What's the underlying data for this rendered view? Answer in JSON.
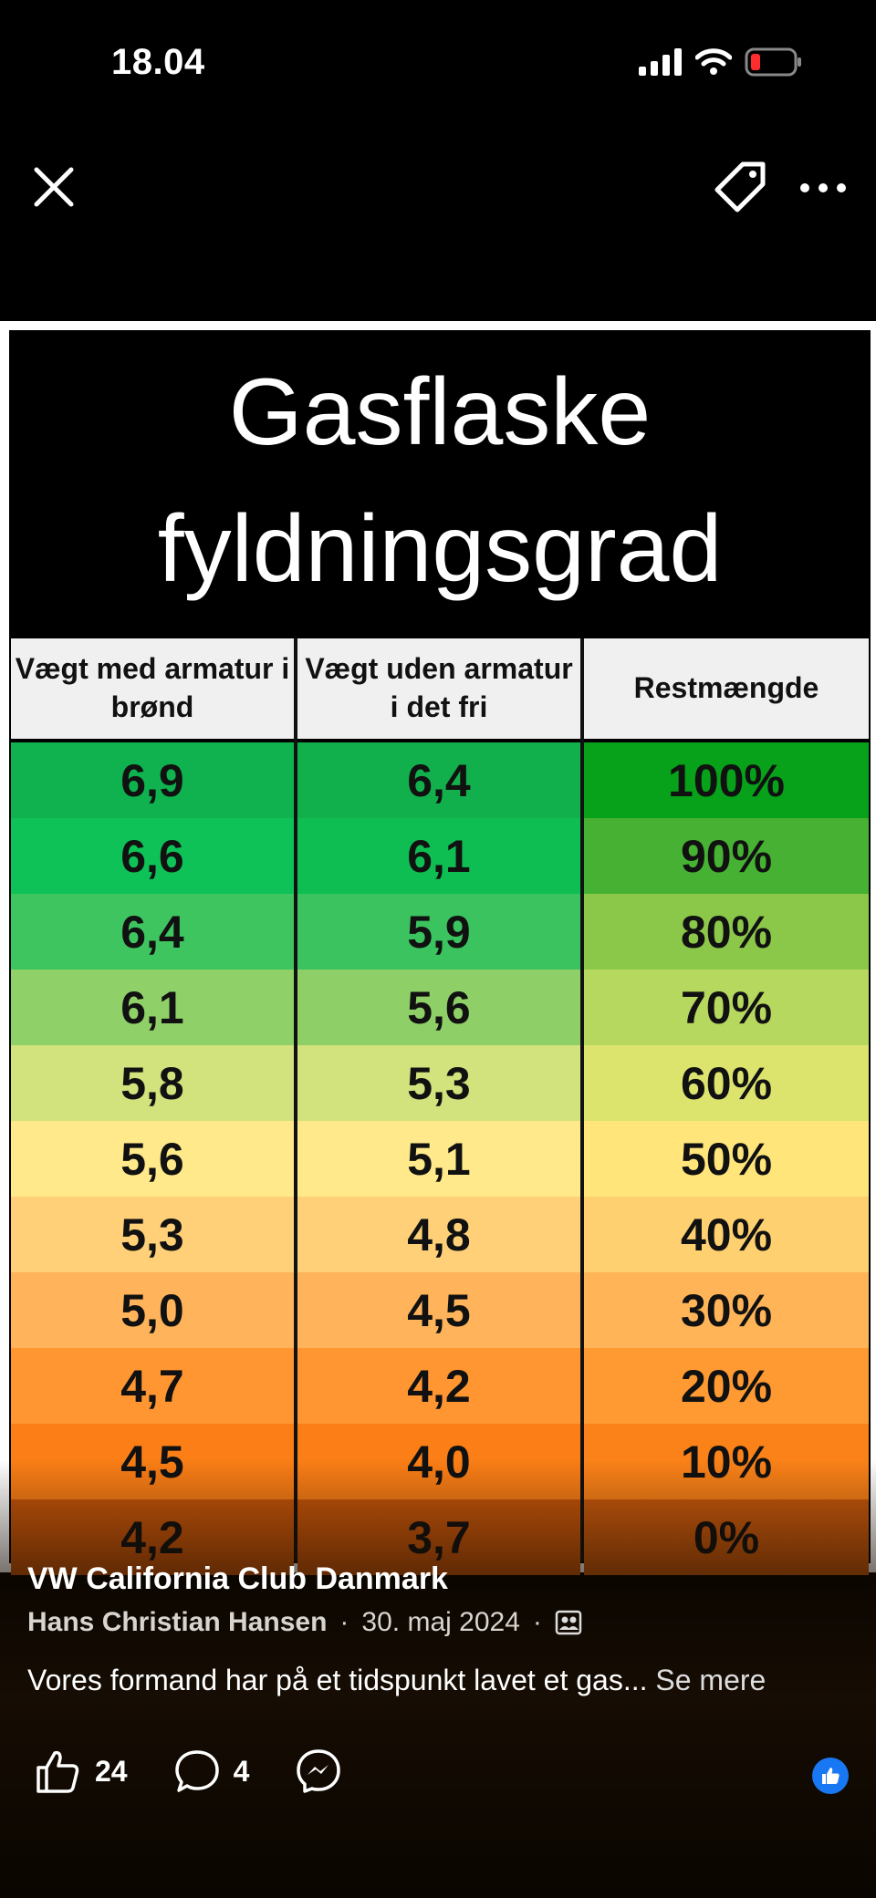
{
  "status_bar": {
    "time": "18.04"
  },
  "post_image": {
    "title_line1": "Gasflaske",
    "title_line2": "fyldningsgrad",
    "columns": [
      "Vægt med armatur i brønd",
      "Vægt uden armatur i det fri",
      "Restmængde"
    ],
    "rows": [
      {
        "a": "6,9",
        "b": "6,4",
        "c": "100%",
        "col_a": "#0fb24e",
        "col_b": "#12b04c",
        "col_c": "#07a11a"
      },
      {
        "a": "6,6",
        "b": "6,1",
        "c": "90%",
        "col_a": "#0ec257",
        "col_b": "#0fbe52",
        "col_c": "#46b133"
      },
      {
        "a": "6,4",
        "b": "5,9",
        "c": "80%",
        "col_a": "#3fc560",
        "col_b": "#3ac35e",
        "col_c": "#8bc84a"
      },
      {
        "a": "6,1",
        "b": "5,6",
        "c": "70%",
        "col_a": "#8fd068",
        "col_b": "#8ed067",
        "col_c": "#b7d85e"
      },
      {
        "a": "5,8",
        "b": "5,3",
        "c": "60%",
        "col_a": "#d2e27c",
        "col_b": "#d2e27c",
        "col_c": "#dde46e"
      },
      {
        "a": "5,6",
        "b": "5,1",
        "c": "50%",
        "col_a": "#ffe98a",
        "col_b": "#ffe98a",
        "col_c": "#ffe57a"
      },
      {
        "a": "5,3",
        "b": "4,8",
        "c": "40%",
        "col_a": "#ffd078",
        "col_b": "#ffd078",
        "col_c": "#ffd070"
      },
      {
        "a": "5,0",
        "b": "4,5",
        "c": "30%",
        "col_a": "#ffb35a",
        "col_b": "#ffb35a",
        "col_c": "#ffb457"
      },
      {
        "a": "4,7",
        "b": "4,2",
        "c": "20%",
        "col_a": "#ff9632",
        "col_b": "#ff9632",
        "col_c": "#ff9a33"
      },
      {
        "a": "4,5",
        "b": "4,0",
        "c": "10%",
        "col_a": "#fb7e16",
        "col_b": "#fb7e16",
        "col_c": "#fb8218"
      },
      {
        "a": "4,2",
        "b": "3,7",
        "c": "0%",
        "col_a": "#c9560a",
        "col_b": "#c9560a",
        "col_c": "#cc5a0c"
      }
    ]
  },
  "post": {
    "group_name": "VW California Club Danmark",
    "author": "Hans Christian Hansen",
    "separator": "·",
    "date": "30. maj 2024",
    "caption": "Vores formand har på et tidspunkt lavet et gas...",
    "see_more": "Se mere"
  },
  "actions": {
    "likes": "24",
    "comments": "4"
  },
  "icons": {
    "close": "close-icon",
    "tag": "tag-icon",
    "more": "more-icon",
    "like": "thumbs-up-icon",
    "comment": "comment-icon",
    "share": "messenger-icon",
    "audience": "group-audience-icon",
    "like_reaction": "like-reaction-icon"
  }
}
